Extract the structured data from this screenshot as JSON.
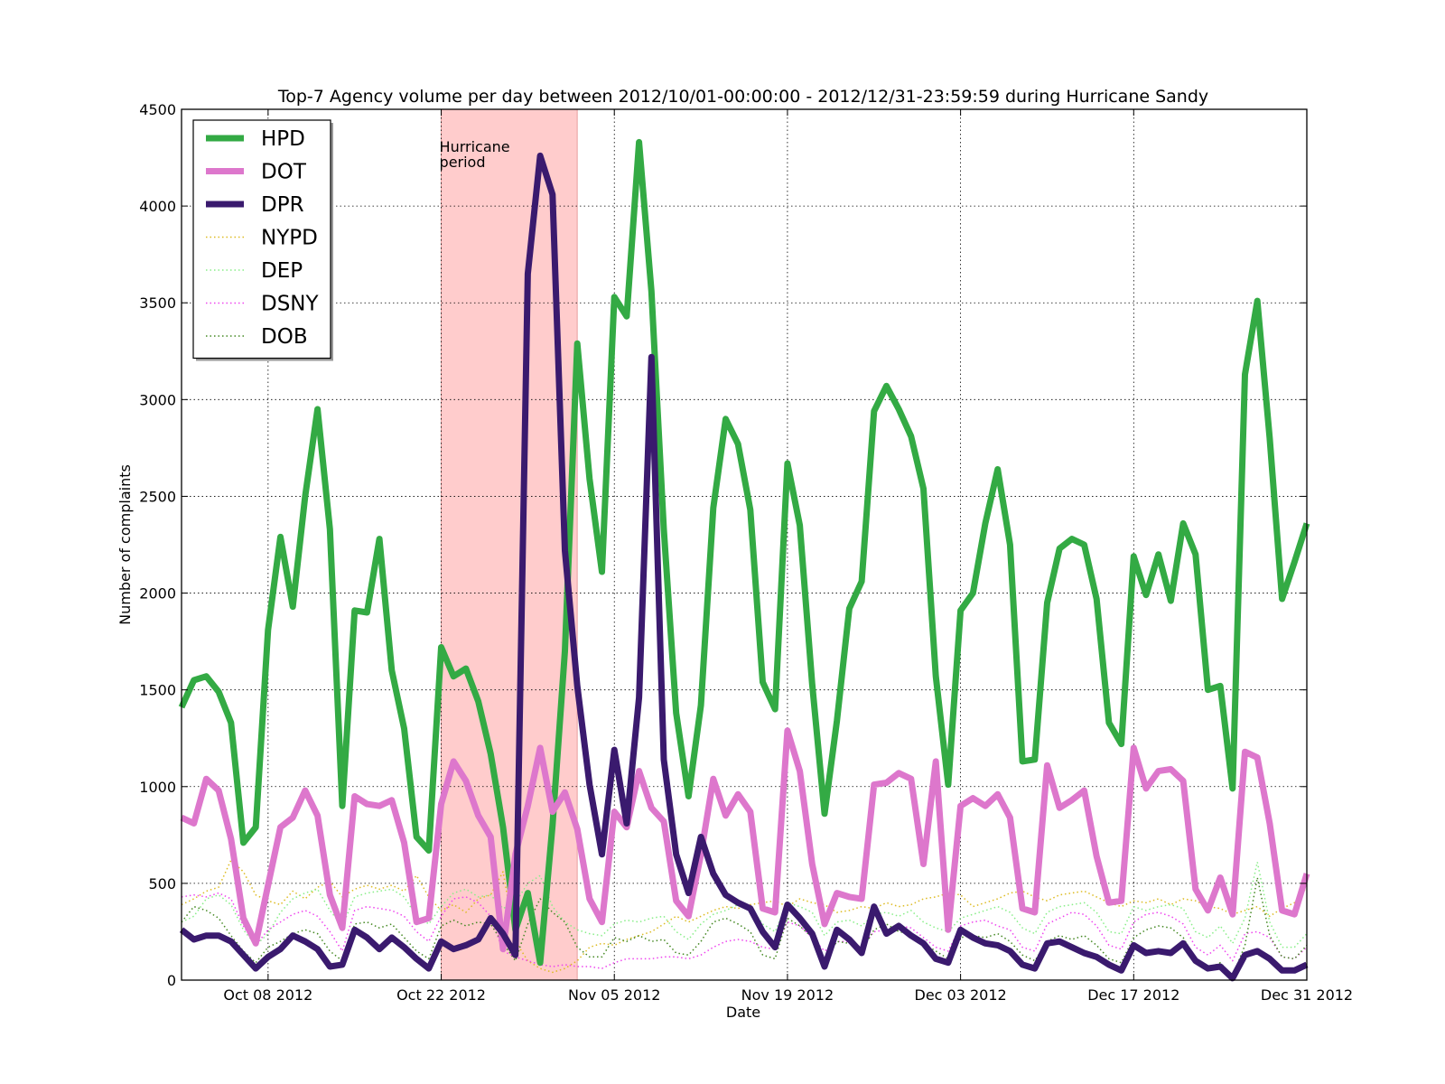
{
  "chart_data": {
    "type": "line",
    "title": "Top-7 Agency volume per day between 2012/10/01-00:00:00 - 2012/12/31-23:59:59 during Hurricane Sandy",
    "xlabel": "Date",
    "ylabel": "Number of complaints",
    "ylim": [
      0,
      4500
    ],
    "xlim_days": [
      0,
      91
    ],
    "yticks": [
      0,
      500,
      1000,
      1500,
      2000,
      2500,
      3000,
      3500,
      4000,
      4500
    ],
    "xticks": [
      {
        "day": 7,
        "label": "Oct 08 2012"
      },
      {
        "day": 21,
        "label": "Oct 22 2012"
      },
      {
        "day": 35,
        "label": "Nov 05 2012"
      },
      {
        "day": 49,
        "label": "Nov 19 2012"
      },
      {
        "day": 63,
        "label": "Dec 03 2012"
      },
      {
        "day": 77,
        "label": "Dec 17 2012"
      },
      {
        "day": 91,
        "label": "Dec 31 2012"
      }
    ],
    "grid": true,
    "legend_position": "top-left",
    "x_start_date": "2012-10-01",
    "shaded_region": {
      "start_day": 21,
      "end_day": 32,
      "color": "#ffcccc",
      "label": "Hurricane\nperiod"
    },
    "series": [
      {
        "name": "HPD",
        "color": "#33aa44",
        "style": "solid",
        "width": 7,
        "values": [
          1410,
          1550,
          1570,
          1490,
          1330,
          710,
          790,
          1810,
          2290,
          1930,
          2500,
          2950,
          2330,
          900,
          1910,
          1900,
          2280,
          1600,
          1300,
          740,
          670,
          1720,
          1570,
          1610,
          1440,
          1170,
          790,
          260,
          450,
          90,
          800,
          1700,
          3290,
          2590,
          2110,
          3530,
          3430,
          4330,
          3560,
          2330,
          1380,
          950,
          1420,
          2440,
          2900,
          2770,
          2430,
          1540,
          1400,
          2670,
          2350,
          1530,
          860,
          1340,
          1920,
          2060,
          2940,
          3070,
          2950,
          2810,
          2540,
          1570,
          1010,
          1910,
          2000,
          2360,
          2640,
          2250,
          1130,
          1140,
          1950,
          2230,
          2280,
          2250,
          1970,
          1330,
          1220,
          2190,
          1990,
          2200,
          1960,
          2360,
          2200,
          1500,
          1520,
          990,
          3130,
          3510,
          2800,
          1970,
          2160,
          2360
        ]
      },
      {
        "name": "DOT",
        "color": "#dd77cc",
        "style": "solid",
        "width": 7,
        "values": [
          840,
          810,
          1040,
          980,
          730,
          320,
          190,
          490,
          790,
          840,
          980,
          850,
          440,
          270,
          950,
          910,
          900,
          930,
          710,
          300,
          320,
          910,
          1130,
          1030,
          850,
          740,
          160,
          650,
          900,
          1200,
          870,
          970,
          780,
          420,
          300,
          870,
          790,
          1080,
          890,
          820,
          410,
          330,
          650,
          1040,
          850,
          960,
          870,
          370,
          350,
          1290,
          1080,
          600,
          290,
          450,
          430,
          420,
          1010,
          1020,
          1070,
          1040,
          600,
          1130,
          260,
          900,
          940,
          900,
          960,
          840,
          370,
          350,
          1110,
          890,
          930,
          980,
          640,
          400,
          410,
          1200,
          990,
          1080,
          1090,
          1030,
          470,
          360,
          530,
          340,
          1180,
          1150,
          810,
          360,
          340,
          550
        ]
      },
      {
        "name": "DPR",
        "color": "#3a1a6e",
        "style": "solid",
        "width": 7,
        "values": [
          260,
          210,
          230,
          230,
          200,
          130,
          60,
          120,
          160,
          230,
          200,
          160,
          70,
          80,
          260,
          220,
          160,
          220,
          170,
          110,
          60,
          200,
          160,
          180,
          210,
          320,
          240,
          130,
          3650,
          4260,
          4060,
          2220,
          1520,
          1010,
          650,
          1190,
          810,
          1460,
          3220,
          1140,
          650,
          450,
          740,
          550,
          440,
          400,
          370,
          250,
          170,
          390,
          320,
          240,
          70,
          260,
          210,
          140,
          380,
          240,
          280,
          230,
          190,
          110,
          90,
          260,
          220,
          190,
          180,
          150,
          80,
          60,
          190,
          200,
          170,
          140,
          120,
          80,
          50,
          180,
          140,
          150,
          140,
          190,
          100,
          60,
          70,
          10,
          130,
          150,
          110,
          50,
          50,
          80
        ]
      },
      {
        "name": "NYPD",
        "color": "#ddbb22",
        "style": "dotted",
        "width": 1.5,
        "values": [
          390,
          420,
          460,
          480,
          620,
          560,
          440,
          410,
          390,
          460,
          420,
          480,
          510,
          430,
          470,
          490,
          470,
          490,
          460,
          540,
          430,
          360,
          390,
          350,
          420,
          440,
          560,
          200,
          100,
          60,
          40,
          60,
          100,
          170,
          190,
          180,
          210,
          230,
          250,
          290,
          330,
          300,
          330,
          360,
          380,
          370,
          390,
          400,
          410,
          380,
          420,
          400,
          390,
          350,
          360,
          380,
          370,
          400,
          380,
          390,
          420,
          430,
          450,
          440,
          380,
          400,
          420,
          450,
          460,
          430,
          410,
          440,
          450,
          460,
          430,
          400,
          380,
          410,
          400,
          420,
          390,
          420,
          410,
          380,
          370,
          340,
          360,
          380,
          330,
          370,
          400,
          480
        ]
      },
      {
        "name": "DEP",
        "color": "#88ee88",
        "style": "dotted",
        "width": 1.5,
        "values": [
          300,
          330,
          420,
          440,
          390,
          260,
          180,
          240,
          350,
          420,
          450,
          470,
          360,
          280,
          430,
          450,
          460,
          470,
          430,
          330,
          290,
          380,
          450,
          470,
          430,
          440,
          370,
          400,
          500,
          540,
          380,
          300,
          260,
          240,
          230,
          290,
          310,
          300,
          320,
          330,
          250,
          210,
          290,
          340,
          360,
          390,
          380,
          290,
          250,
          400,
          380,
          350,
          230,
          300,
          310,
          280,
          340,
          350,
          330,
          360,
          300,
          270,
          250,
          320,
          340,
          360,
          380,
          350,
          270,
          240,
          350,
          380,
          390,
          400,
          350,
          250,
          240,
          380,
          360,
          380,
          390,
          370,
          250,
          220,
          280,
          190,
          320,
          610,
          300,
          170,
          170,
          240
        ]
      },
      {
        "name": "DSNY",
        "color": "#ee44ee",
        "style": "dotted",
        "width": 1.5,
        "values": [
          430,
          440,
          430,
          450,
          420,
          280,
          180,
          260,
          300,
          340,
          360,
          330,
          250,
          150,
          360,
          380,
          370,
          360,
          330,
          250,
          200,
          330,
          420,
          430,
          400,
          330,
          150,
          120,
          100,
          80,
          70,
          80,
          70,
          70,
          60,
          90,
          110,
          110,
          110,
          120,
          120,
          110,
          130,
          170,
          200,
          210,
          200,
          170,
          160,
          300,
          280,
          220,
          150,
          200,
          200,
          170,
          250,
          260,
          280,
          270,
          220,
          170,
          150,
          280,
          300,
          310,
          280,
          260,
          170,
          150,
          290,
          320,
          350,
          340,
          280,
          180,
          160,
          300,
          340,
          350,
          330,
          290,
          170,
          130,
          180,
          100,
          240,
          250,
          220,
          120,
          110,
          170
        ]
      },
      {
        "name": "DOB",
        "color": "#448822",
        "style": "dotted",
        "width": 1.5,
        "values": [
          300,
          380,
          360,
          320,
          230,
          150,
          90,
          170,
          200,
          240,
          260,
          240,
          150,
          100,
          290,
          300,
          270,
          290,
          220,
          150,
          110,
          280,
          310,
          280,
          300,
          290,
          190,
          100,
          290,
          420,
          350,
          300,
          170,
          120,
          120,
          220,
          200,
          230,
          200,
          210,
          140,
          130,
          200,
          300,
          320,
          290,
          250,
          130,
          110,
          320,
          280,
          220,
          100,
          200,
          190,
          150,
          260,
          290,
          250,
          240,
          190,
          150,
          110,
          220,
          230,
          220,
          240,
          200,
          130,
          100,
          200,
          230,
          210,
          230,
          180,
          110,
          90,
          220,
          260,
          280,
          270,
          220,
          110,
          60,
          90,
          20,
          180,
          530,
          230,
          120,
          110,
          180
        ]
      }
    ],
    "annotations": [
      {
        "text": "Hurricane\nperiod"
      }
    ]
  }
}
